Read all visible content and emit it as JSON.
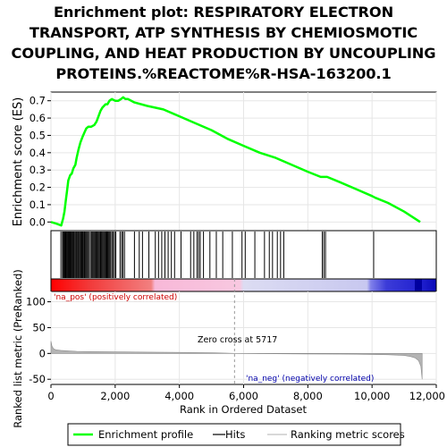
{
  "title_lines": [
    "Enrichment plot: RESPIRATORY ELECTRON",
    "TRANSPORT, ATP SYNTHESIS BY CHEMIOSMOTIC",
    "COUPLING, AND HEAT PRODUCTION BY UNCOUPLING",
    "PROTEINS.%REACTOME%R-HSA-163200.1"
  ],
  "chart_data": {
    "type": "line",
    "title": "Enrichment plot: RESPIRATORY ELECTRON TRANSPORT, ATP SYNTHESIS BY CHEMIOSMOTIC COUPLING, AND HEAT PRODUCTION BY UNCOUPLING PROTEINS.%REACTOME%R-HSA-163200.1",
    "xlabel": "Rank in Ordered Dataset",
    "xlim": [
      0,
      12000
    ],
    "x_ticks": [
      0,
      2000,
      4000,
      6000,
      8000,
      10000,
      12000
    ],
    "x_tick_labels": [
      "0",
      "2,000",
      "4,000",
      "6,000",
      "8,000",
      "10,000",
      "12,000"
    ],
    "es_panel": {
      "ylabel": "Enrichment score (ES)",
      "ylim": [
        -0.05,
        0.75
      ],
      "y_ticks": [
        0.0,
        0.1,
        0.2,
        0.3,
        0.4,
        0.5,
        0.6,
        0.7
      ],
      "y_tick_labels": [
        "0.0",
        "0.1",
        "0.2",
        "0.3",
        "0.4",
        "0.5",
        "0.6",
        "0.7"
      ],
      "series": [
        {
          "name": "Enrichment profile",
          "color": "#00ff00",
          "x": [
            0,
            180,
            320,
            380,
            420,
            460,
            500,
            540,
            600,
            650,
            700,
            760,
            800,
            860,
            920,
            980,
            1050,
            1100,
            1160,
            1250,
            1350,
            1420,
            1480,
            1540,
            1600,
            1650,
            1700,
            1760,
            1820,
            1900,
            2000,
            2100,
            2180,
            2250,
            2320,
            2400,
            2600,
            3000,
            3500,
            4000,
            4500,
            5000,
            5500,
            6000,
            6500,
            7000,
            7500,
            8000,
            8400,
            8600,
            9000,
            9500,
            10000,
            10100,
            10500,
            11000,
            11500
          ],
          "y": [
            0.0,
            -0.01,
            -0.02,
            0.02,
            0.06,
            0.12,
            0.18,
            0.24,
            0.27,
            0.28,
            0.31,
            0.33,
            0.37,
            0.42,
            0.46,
            0.49,
            0.52,
            0.54,
            0.55,
            0.55,
            0.56,
            0.58,
            0.61,
            0.64,
            0.66,
            0.67,
            0.68,
            0.68,
            0.7,
            0.71,
            0.7,
            0.7,
            0.71,
            0.72,
            0.71,
            0.71,
            0.69,
            0.67,
            0.65,
            0.61,
            0.57,
            0.53,
            0.48,
            0.44,
            0.4,
            0.37,
            0.33,
            0.29,
            0.26,
            0.26,
            0.23,
            0.19,
            0.15,
            0.14,
            0.11,
            0.06,
            0.0
          ]
        }
      ]
    },
    "hits_panel": {
      "name": "Hits",
      "hit_positions": [
        310,
        360,
        390,
        420,
        445,
        470,
        495,
        520,
        545,
        570,
        600,
        625,
        650,
        680,
        705,
        730,
        760,
        790,
        815,
        845,
        870,
        900,
        930,
        960,
        990,
        1010,
        1040,
        1060,
        1090,
        1120,
        1150,
        1190,
        1230,
        1270,
        1300,
        1330,
        1360,
        1390,
        1420,
        1450,
        1480,
        1510,
        1540,
        1560,
        1590,
        1620,
        1650,
        1680,
        1710,
        1740,
        1770,
        1800,
        1830,
        1860,
        1900,
        1940,
        1980,
        2020,
        2150,
        2200,
        2240,
        2290,
        2600,
        2750,
        2850,
        3050,
        3250,
        3350,
        3450,
        3550,
        3650,
        3750,
        3850,
        4050,
        4350,
        4450,
        4550,
        4600,
        4650,
        4750,
        4950,
        5150,
        5350,
        5650,
        5950,
        6050,
        6350,
        6650,
        6800,
        6900,
        7050,
        7150,
        7250,
        8450,
        8500,
        8550,
        10050
      ]
    },
    "ranking_panel": {
      "name": "Ranking metric scores",
      "ylabel": "Ranked list metric (PreRanked)",
      "ylim": [
        -60,
        120
      ],
      "y_ticks": [
        -50,
        0,
        50,
        100
      ],
      "y_tick_labels": [
        "-50",
        "0",
        "50",
        "100"
      ],
      "x": [
        0,
        30,
        80,
        150,
        300,
        500,
        800,
        1200,
        2000,
        3000,
        4000,
        5000,
        5717,
        6500,
        8000,
        9500,
        10500,
        11000,
        11200,
        11350,
        11450,
        11520,
        11560
      ],
      "y": [
        24,
        14,
        9,
        7,
        6,
        5,
        4,
        3.5,
        3,
        2.5,
        2,
        1.2,
        0,
        -0.5,
        -1,
        -1.5,
        -2.5,
        -4,
        -6,
        -9,
        -14,
        -25,
        -50
      ],
      "zero_cross_label": "Zero cross at 5717",
      "zero_cross_x": 5717,
      "pos_label": "'na_pos' (positively correlated)",
      "neg_label": "'na_neg' (negatively correlated)"
    },
    "legend": {
      "placement": "bottom",
      "entries": [
        {
          "name": "Enrichment profile",
          "color": "#00ff00"
        },
        {
          "name": "Hits",
          "color": "#000000"
        },
        {
          "name": "Ranking metric scores",
          "color": "#c0c0c0"
        }
      ]
    }
  }
}
